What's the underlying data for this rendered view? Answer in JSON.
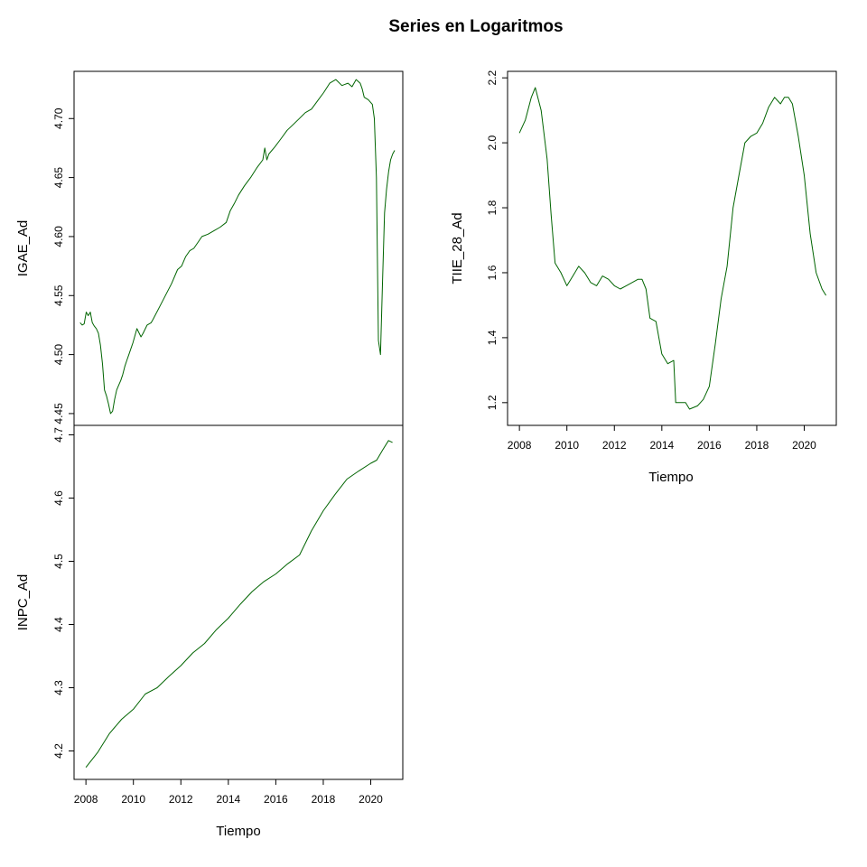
{
  "title": "Series en Logaritmos",
  "colors": {
    "series": "#006400",
    "axes": "#000000",
    "background": "#ffffff"
  },
  "chart_data": [
    {
      "id": "igae",
      "type": "line",
      "title": "",
      "xlabel": "",
      "ylabel": "IGAE_Ad",
      "xlim": [
        2007.75,
        2021.25
      ],
      "ylim": [
        4.44,
        4.74
      ],
      "xticks": [],
      "xtick_labels": [],
      "yticks": [
        4.45,
        4.5,
        4.55,
        4.6,
        4.65,
        4.7
      ],
      "ytick_labels": [
        "4.45",
        "4.50",
        "4.55",
        "4.60",
        "4.65",
        "4.70"
      ],
      "series": [
        {
          "x": [
            2008.0,
            2008.083,
            2008.167,
            2008.25,
            2008.333,
            2008.417,
            2008.5,
            2008.583,
            2008.667,
            2008.75,
            2008.833,
            2008.917,
            2009.0,
            2009.083,
            2009.167,
            2009.25,
            2009.333,
            2009.417,
            2009.5,
            2009.583,
            2009.667,
            2009.75,
            2009.833,
            2009.917,
            2010.0,
            2010.167,
            2010.333,
            2010.5,
            2010.583,
            2010.75,
            2010.917,
            2011.0,
            2011.25,
            2011.5,
            2011.75,
            2012.0,
            2012.167,
            2012.333,
            2012.5,
            2012.667,
            2012.833,
            2013.0,
            2013.25,
            2013.5,
            2013.75,
            2014.0,
            2014.167,
            2014.333,
            2014.5,
            2014.75,
            2015.0,
            2015.25,
            2015.5,
            2015.583,
            2015.667,
            2015.75,
            2016.0,
            2016.25,
            2016.5,
            2016.75,
            2017.0,
            2017.25,
            2017.5,
            2017.75,
            2018.0,
            2018.25,
            2018.5,
            2018.75,
            2019.0,
            2019.167,
            2019.333,
            2019.5,
            2019.583,
            2019.667,
            2019.833,
            2020.0,
            2020.083,
            2020.167,
            2020.25,
            2020.333,
            2020.417,
            2020.5,
            2020.583,
            2020.667,
            2020.75,
            2020.833,
            2020.917
          ],
          "values": [
            4.527,
            4.525,
            4.526,
            4.536,
            4.533,
            4.536,
            4.527,
            4.524,
            4.522,
            4.518,
            4.508,
            4.492,
            4.47,
            4.465,
            4.458,
            4.45,
            4.452,
            4.462,
            4.47,
            4.474,
            4.478,
            4.483,
            4.49,
            4.495,
            4.5,
            4.51,
            4.522,
            4.515,
            4.518,
            4.525,
            4.527,
            4.53,
            4.54,
            4.55,
            4.56,
            4.572,
            4.575,
            4.583,
            4.588,
            4.59,
            4.595,
            4.6,
            4.602,
            4.605,
            4.608,
            4.612,
            4.622,
            4.628,
            4.635,
            4.643,
            4.65,
            4.658,
            4.665,
            4.675,
            4.665,
            4.67,
            4.676,
            4.683,
            4.69,
            4.695,
            4.7,
            4.705,
            4.708,
            4.715,
            4.722,
            4.73,
            4.733,
            4.728,
            4.73,
            4.727,
            4.733,
            4.73,
            4.725,
            4.718,
            4.716,
            4.712,
            4.7,
            4.65,
            4.512,
            4.5,
            4.56,
            4.62,
            4.64,
            4.655,
            4.665,
            4.67,
            4.673
          ]
        }
      ]
    },
    {
      "id": "inpc",
      "type": "line",
      "title": "",
      "xlabel": "Tiempo",
      "ylabel": "INPC_Ad",
      "xlim": [
        2007.5,
        2021.35
      ],
      "ylim": [
        4.155,
        4.715
      ],
      "xticks": [
        2008,
        2010,
        2012,
        2014,
        2016,
        2018,
        2020
      ],
      "xtick_labels": [
        "2008",
        "2010",
        "2012",
        "2014",
        "2016",
        "2018",
        "2020"
      ],
      "yticks": [
        4.2,
        4.3,
        4.4,
        4.5,
        4.6,
        4.7
      ],
      "ytick_labels": [
        "4.2",
        "4.3",
        "4.4",
        "4.5",
        "4.6",
        "4.7"
      ],
      "series": [
        {
          "x": [
            2008.0,
            2008.5,
            2009.0,
            2009.5,
            2010.0,
            2010.5,
            2011.0,
            2011.5,
            2012.0,
            2012.5,
            2013.0,
            2013.5,
            2014.0,
            2014.5,
            2015.0,
            2015.5,
            2016.0,
            2016.5,
            2017.0,
            2017.5,
            2018.0,
            2018.5,
            2019.0,
            2019.5,
            2020.0,
            2020.25,
            2020.5,
            2020.75,
            2020.917
          ],
          "values": [
            4.174,
            4.198,
            4.228,
            4.25,
            4.266,
            4.29,
            4.3,
            4.318,
            4.335,
            4.355,
            4.37,
            4.392,
            4.41,
            4.432,
            4.452,
            4.468,
            4.48,
            4.496,
            4.51,
            4.548,
            4.58,
            4.606,
            4.63,
            4.643,
            4.655,
            4.66,
            4.676,
            4.691,
            4.688
          ]
        }
      ]
    },
    {
      "id": "tiie",
      "type": "line",
      "title": "",
      "xlabel": "Tiempo",
      "ylabel": "TIIE_28_Ad",
      "xlim": [
        2007.5,
        2021.35
      ],
      "ylim": [
        1.13,
        2.22
      ],
      "xticks": [
        2008,
        2010,
        2012,
        2014,
        2016,
        2018,
        2020
      ],
      "xtick_labels": [
        "2008",
        "2010",
        "2012",
        "2014",
        "2016",
        "2018",
        "2020"
      ],
      "yticks": [
        1.2,
        1.4,
        1.6,
        1.8,
        2.0,
        2.2
      ],
      "ytick_labels": [
        "1.2",
        "1.4",
        "1.6",
        "1.8",
        "2.0",
        "2.2"
      ],
      "series": [
        {
          "x": [
            2008.0,
            2008.25,
            2008.5,
            2008.667,
            2008.917,
            2009.167,
            2009.333,
            2009.5,
            2009.75,
            2010.0,
            2010.25,
            2010.5,
            2010.75,
            2011.0,
            2011.25,
            2011.5,
            2011.75,
            2012.0,
            2012.25,
            2012.5,
            2012.75,
            2013.0,
            2013.167,
            2013.333,
            2013.5,
            2013.75,
            2014.0,
            2014.25,
            2014.5,
            2014.583,
            2014.75,
            2015.0,
            2015.167,
            2015.5,
            2015.75,
            2016.0,
            2016.25,
            2016.5,
            2016.75,
            2017.0,
            2017.25,
            2017.5,
            2017.75,
            2018.0,
            2018.25,
            2018.5,
            2018.75,
            2019.0,
            2019.167,
            2019.333,
            2019.5,
            2019.75,
            2020.0,
            2020.25,
            2020.5,
            2020.75,
            2020.917
          ],
          "values": [
            2.03,
            2.07,
            2.14,
            2.17,
            2.1,
            1.95,
            1.78,
            1.63,
            1.6,
            1.56,
            1.59,
            1.62,
            1.6,
            1.57,
            1.56,
            1.59,
            1.58,
            1.56,
            1.55,
            1.56,
            1.57,
            1.58,
            1.58,
            1.55,
            1.46,
            1.45,
            1.35,
            1.32,
            1.33,
            1.2,
            1.2,
            1.2,
            1.18,
            1.19,
            1.21,
            1.25,
            1.38,
            1.52,
            1.62,
            1.8,
            1.9,
            2.0,
            2.02,
            2.03,
            2.06,
            2.11,
            2.14,
            2.12,
            2.14,
            2.14,
            2.12,
            2.02,
            1.9,
            1.72,
            1.6,
            1.55,
            1.53
          ]
        }
      ]
    }
  ]
}
